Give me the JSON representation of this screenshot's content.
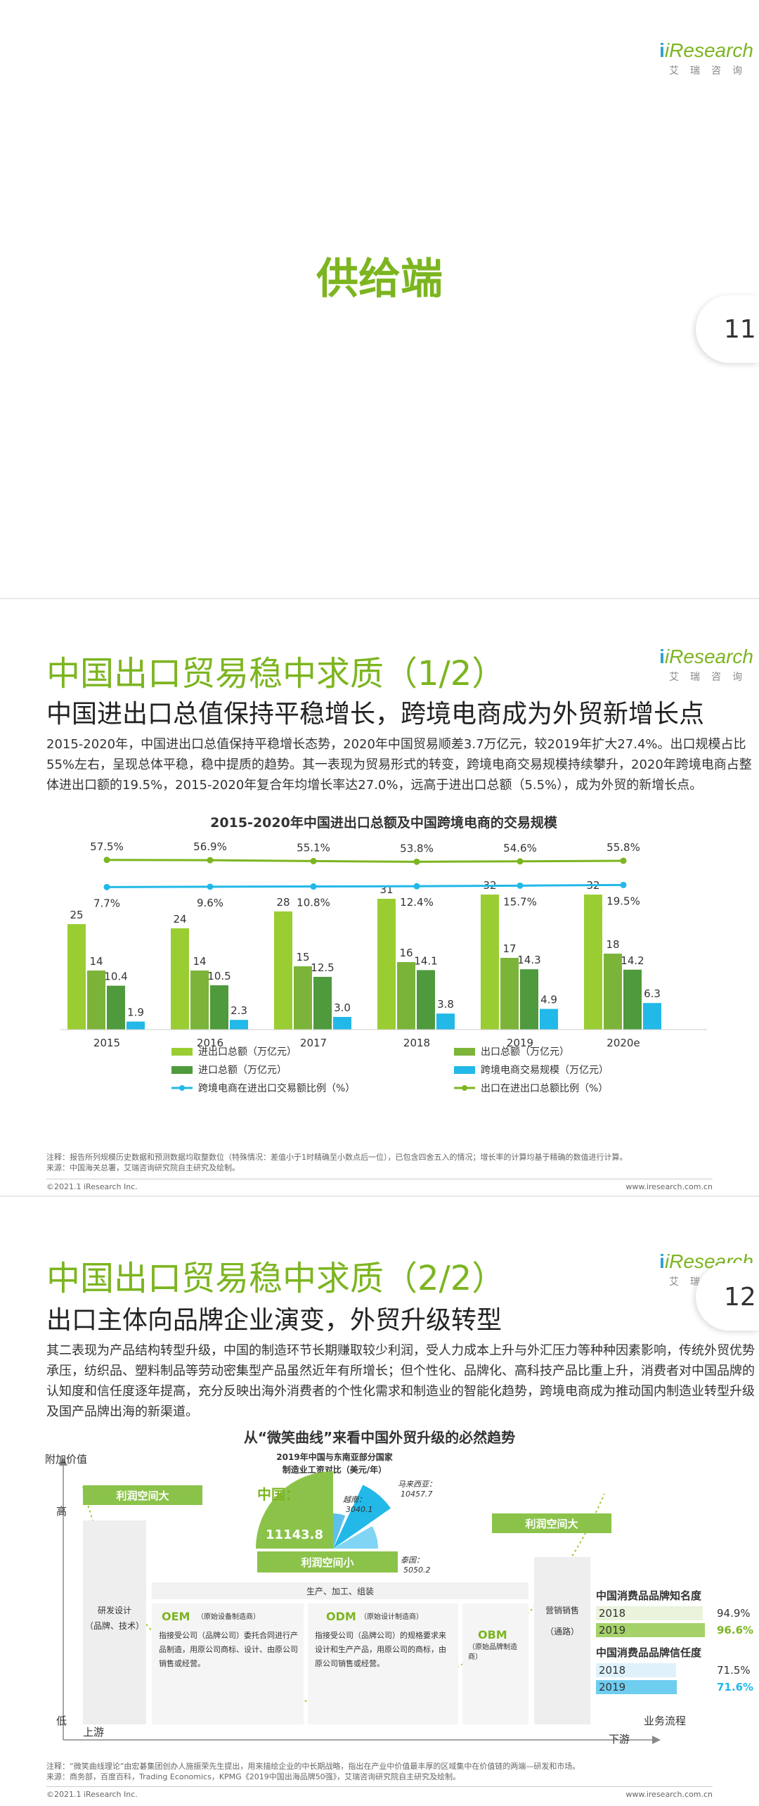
{
  "brand": {
    "logo_text": "iResearch",
    "logo_sub": "艾瑞咨询"
  },
  "slide1": {
    "title": "供给端",
    "page_number": "11"
  },
  "slide2": {
    "title": "中国出口贸易稳中求质（1/2）",
    "subtitle": "中国进出口总值保持平稳增长，跨境电商成为外贸新增长点",
    "paragraph": "2015-2020年，中国进出口总值保持平稳增长态势，2020年中国贸易顺差3.7万亿元，较2019年扩大27.4%。出口规模占比55%左右，呈现总体平稳，稳中提质的趋势。其一表现为贸易形式的转变，跨境电商交易规模持续攀升，2020年跨境电商占整体进出口额的19.5%，2015-2020年复合年均增长率达27.0%，远高于进出口总额（5.5%），成为外贸的新增长点。",
    "note": "注释：报告所列规模历史数据和预测数据均取整数位（特殊情况：差值小于1时精确至小数点后一位），已包含四舍五入的情况；增长率的计算均基于精确的数值进行计算。",
    "source": "来源：中国海关总署，艾瑞咨询研究院自主研究及绘制。",
    "copyright": "©2021.1 iResearch Inc.",
    "website": "www.iresearch.com.cn"
  },
  "chart_data": {
    "type": "bar",
    "title": "2015-2020年中国进出口总额及中国跨境电商的交易规模",
    "categories": [
      "2015",
      "2016",
      "2017",
      "2018",
      "2019",
      "2020e"
    ],
    "series": [
      {
        "name": "进出口总额（万亿元）",
        "values": [
          25,
          24,
          28,
          31,
          32,
          32
        ],
        "color": "#9acd32",
        "labels": [
          "25",
          "24",
          "28",
          "31",
          "32",
          "32"
        ]
      },
      {
        "name": "出口总额（万亿元）",
        "values": [
          14,
          14,
          15,
          16,
          17,
          18
        ],
        "color": "#7cb43a",
        "labels": [
          "14",
          "14",
          "15",
          "16",
          "17",
          "18"
        ]
      },
      {
        "name": "进口总额（万亿元）",
        "values": [
          10.4,
          10.5,
          12.5,
          14.1,
          14.3,
          14.2
        ],
        "color": "#4e9a3c",
        "labels": [
          "10.4",
          "10.5",
          "12.5",
          "14.1",
          "14.3",
          "14.2"
        ]
      },
      {
        "name": "跨境电商交易规模（万亿元）",
        "values": [
          1.9,
          2.3,
          3.0,
          3.8,
          4.9,
          6.3
        ],
        "color": "#22b8e8",
        "labels": [
          "1.9",
          "2.3",
          "3.0",
          "3.8",
          "4.9",
          "6.3"
        ]
      }
    ],
    "lines": [
      {
        "name": "出口在进出口总额比例（%）",
        "values": [
          57.5,
          56.9,
          55.1,
          53.8,
          54.6,
          55.8
        ],
        "color": "#7cb520",
        "labels": [
          "57.5%",
          "56.9%",
          "55.1%",
          "53.8%",
          "54.6%",
          "55.8%"
        ]
      },
      {
        "name": "跨境电商在进出口交易额比例（%）",
        "values": [
          7.7,
          9.6,
          10.8,
          12.4,
          15.7,
          19.5
        ],
        "color": "#22b8e8",
        "labels": [
          "7.7%",
          "9.6%",
          "10.8%",
          "12.4%",
          "15.7%",
          "19.5%"
        ]
      }
    ],
    "ylim": [
      0,
      35
    ],
    "legend": "bottom"
  },
  "slide3": {
    "title": "中国出口贸易稳中求质（2/2）",
    "subtitle": "出口主体向品牌企业演变，外贸升级转型",
    "page_number": "12",
    "paragraph": "其二表现为产品结构转型升级，中国的制造环节长期赚取较少利润，受人力成本上升与外汇压力等种种因素影响，传统外贸优势承压，纺织品、塑料制品等劳动密集型产品虽然近年有所增长；但个性化、品牌化、高科技产品比重上升，消费者对中国品牌的认知度和信任度逐年提高，充分反映出海外消费者的个性化需求和制造业的智能化趋势，跨境电商成为推动国内制造业转型升级及国产品牌出海的新渠道。",
    "diagram_title": "从“微笑曲线”来看中国外贸升级的必然趋势",
    "axis_y": "附加价值",
    "high": "高",
    "low": "低",
    "upstream": "上游",
    "downstream": "下游",
    "process": "业务流程",
    "profit_big": "利润空间大",
    "profit_small": "利润空间小",
    "wage_title": "2019年中国与东南亚部分国家制造业工资对比（美元/年）",
    "wage_china_label": "中国：",
    "wage_china_value": "11143.8",
    "wages": [
      {
        "country": "越南：",
        "value": "3040.1"
      },
      {
        "country": "马来西亚：",
        "value": "10457.7"
      },
      {
        "country": "泰国：",
        "value": "5050.2"
      }
    ],
    "rd": "研发设计",
    "rd_sub": "（品牌、技术）",
    "production": "生产、加工、组装",
    "marketing": "营销销售",
    "marketing_sub": "（通路）",
    "oem": "OEM",
    "oem_sub": "（原始设备制造商）",
    "oem_desc": "指接受公司（品牌公司）委托合同进行产品制造，用原公司商标、设计、由原公司销售或经营。",
    "odm": "ODM",
    "odm_sub": "（原始设计制造商）",
    "odm_desc": "指接受公司（品牌公司）的规格要求来设计和生产产品，用原公司的商标，由原公司销售或经营。",
    "obm": "OBM",
    "obm_sub": "（原始品牌制造商）",
    "awareness_title": "中国消费品品牌知名度",
    "awareness": [
      {
        "year": "2018",
        "value": "94.9%",
        "pct": 94.9
      },
      {
        "year": "2019",
        "value": "96.6%",
        "pct": 96.6
      }
    ],
    "trust_title": "中国消费品品牌信任度",
    "trust": [
      {
        "year": "2018",
        "value": "71.5%",
        "pct": 71.5
      },
      {
        "year": "2019",
        "value": "71.6%",
        "pct": 71.6
      }
    ],
    "note": "注释：“微笑曲线理论”由宏碁集团创办人施振荣先生提出，用来描绘企业的中长期战略，指出在产业中价值最丰厚的区域集中在价值链的两端—研发和市场。",
    "source": "来源：商务部，百度百科，Trading Economics，KPMG《2019中国出海品牌50强》，艾瑞咨询研究院自主研究及绘制。",
    "copyright": "©2021.1 iResearch Inc.",
    "website": "www.iresearch.com.cn"
  }
}
